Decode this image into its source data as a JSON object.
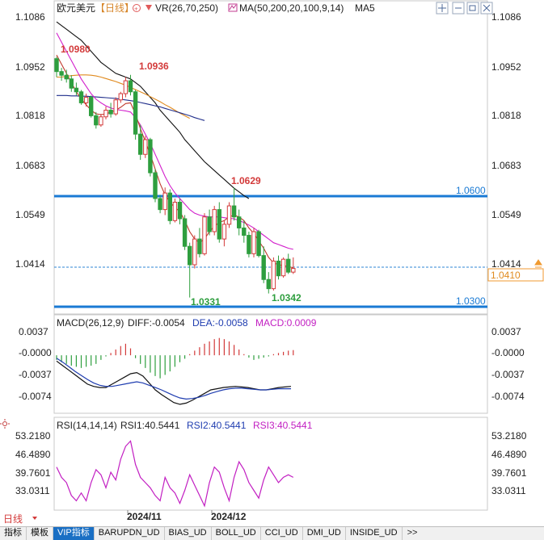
{
  "header": {
    "symbol": "欧元美元",
    "period": "【日线】",
    "vr_label": "VR(26,70,250)",
    "ma_label": "MA(50,200,20,100,9,14)",
    "ma5_label": "MA5"
  },
  "price_axis": {
    "ticks": [
      "1.1086",
      "1.0952",
      "1.0818",
      "1.0683",
      "1.0549",
      "1.0414"
    ],
    "current_price": "1.0410",
    "current_tick": "1.0414"
  },
  "annotations": {
    "high1": "1.0980",
    "high2": "1.0936",
    "high3": "1.0629",
    "low1": "1.0331",
    "low2": "1.0342",
    "level_upper": "1.0600",
    "level_lower": "1.0300"
  },
  "macd": {
    "title": "MACD(26,12,9)",
    "diff": "DIFF:-0.0054",
    "dea": "DEA:-0.0058",
    "macd": "MACD:0.0009",
    "ticks": [
      "0.0037",
      "-0.0000",
      "-0.0037",
      "-0.0074"
    ]
  },
  "rsi": {
    "title": "RSI(14,14,14)",
    "rsi1": "RSI1:40.5441",
    "rsi2": "RSI2:40.5441",
    "rsi3": "RSI3:40.5441",
    "ticks": [
      "53.2180",
      "46.4890",
      "39.7601",
      "33.0311"
    ]
  },
  "time_axis": {
    "labels": [
      "2024/11",
      "2024/12"
    ],
    "period_tab": "日线"
  },
  "tabs": [
    "指标",
    "模板",
    "VIP指标",
    "BARUPDN_UD",
    "BIAS_UD",
    "BOLL_UD",
    "CCI_UD",
    "DMI_UD",
    "INSIDE_UD"
  ],
  "more_tab": ">>",
  "colors": {
    "up": "#d33a3a",
    "down": "#2e9e3e",
    "level": "#1a7ad4",
    "ma_orange": "#e08a1e",
    "ma_navy": "#1f2d8a",
    "ma_black": "#111111",
    "ma_magenta": "#d21fcb",
    "ma_red": "#c0392b"
  },
  "chart_data": {
    "type": "candlestick",
    "ylim": [
      1.0295,
      1.11
    ],
    "candles": [
      [
        1.098,
        1.0985,
        1.093,
        1.0945
      ],
      [
        1.0945,
        1.0955,
        1.092,
        1.0935
      ],
      [
        1.0935,
        1.095,
        1.0915,
        1.0925
      ],
      [
        1.0925,
        1.0935,
        1.089,
        1.09
      ],
      [
        1.09,
        1.0915,
        1.088,
        1.089
      ],
      [
        1.089,
        1.0895,
        1.0855,
        1.086
      ],
      [
        1.086,
        1.0885,
        1.085,
        1.0875
      ],
      [
        1.0875,
        1.088,
        1.082,
        1.0825
      ],
      [
        1.0825,
        1.0835,
        1.079,
        1.08
      ],
      [
        1.08,
        1.083,
        1.0795,
        1.0822
      ],
      [
        1.0822,
        1.085,
        1.0815,
        1.084
      ],
      [
        1.084,
        1.086,
        1.082,
        1.083
      ],
      [
        1.083,
        1.0875,
        1.0825,
        1.0868
      ],
      [
        1.0868,
        1.089,
        1.086,
        1.0885
      ],
      [
        1.0885,
        1.093,
        1.0875,
        1.092
      ],
      [
        1.092,
        1.0936,
        1.088,
        1.089
      ],
      [
        1.089,
        1.0895,
        1.076,
        1.0775
      ],
      [
        1.0775,
        1.08,
        1.0705,
        1.072
      ],
      [
        1.072,
        1.077,
        1.071,
        1.076
      ],
      [
        1.076,
        1.0765,
        1.066,
        1.067
      ],
      [
        1.067,
        1.068,
        1.059,
        1.06
      ],
      [
        1.06,
        1.061,
        1.056,
        1.057
      ],
      [
        1.057,
        1.063,
        1.0555,
        1.0615
      ],
      [
        1.0615,
        1.0625,
        1.053,
        1.054
      ],
      [
        1.054,
        1.06,
        1.0535,
        1.059
      ],
      [
        1.059,
        1.06,
        1.053,
        1.0545
      ],
      [
        1.0545,
        1.0555,
        1.046,
        1.047
      ],
      [
        1.047,
        1.048,
        1.0331,
        1.042
      ],
      [
        1.042,
        1.05,
        1.041,
        1.049
      ],
      [
        1.049,
        1.052,
        1.044,
        1.045
      ],
      [
        1.045,
        1.056,
        1.0445,
        1.055
      ],
      [
        1.055,
        1.057,
        1.05,
        1.051
      ],
      [
        1.051,
        1.058,
        1.05,
        1.057
      ],
      [
        1.057,
        1.059,
        1.048,
        1.049
      ],
      [
        1.049,
        1.054,
        1.047,
        1.053
      ],
      [
        1.053,
        1.059,
        1.052,
        1.058
      ],
      [
        1.058,
        1.0629,
        1.054,
        1.055
      ],
      [
        1.055,
        1.057,
        1.05,
        1.052
      ],
      [
        1.052,
        1.054,
        1.048,
        1.05
      ],
      [
        1.05,
        1.051,
        1.044,
        1.045
      ],
      [
        1.045,
        1.052,
        1.044,
        1.051
      ],
      [
        1.051,
        1.0515,
        1.044,
        1.0445
      ],
      [
        1.0445,
        1.047,
        1.037,
        1.038
      ],
      [
        1.038,
        1.04,
        1.0342,
        1.0355
      ],
      [
        1.0355,
        1.044,
        1.035,
        1.043
      ],
      [
        1.043,
        1.0445,
        1.038,
        1.039
      ],
      [
        1.039,
        1.044,
        1.0385,
        1.0435
      ],
      [
        1.0435,
        1.045,
        1.0395,
        1.04
      ],
      [
        1.04,
        1.044,
        1.0395,
        1.041
      ]
    ],
    "ma_series": [
      {
        "color": "ma_black",
        "values": [
          1.108,
          1.107,
          1.106,
          1.105,
          1.104,
          1.103,
          1.1015,
          1.1,
          1.0985,
          1.097,
          1.096,
          1.095,
          1.094,
          1.0935,
          1.093,
          1.0925,
          1.0915,
          1.0905,
          1.089,
          1.0875,
          1.086,
          1.084,
          1.0825,
          1.081,
          1.0795,
          1.078,
          1.076,
          1.0745,
          1.073,
          1.0715,
          1.07,
          1.0688,
          1.0676,
          1.0664,
          1.0652,
          1.064,
          1.0628,
          1.0618,
          1.0608,
          1.06
        ]
      },
      {
        "color": "ma_orange",
        "values": [
          1.093,
          1.093,
          1.0932,
          1.0934,
          1.0935,
          1.0936,
          1.0936,
          1.0935,
          1.0933,
          1.093,
          1.0926,
          1.0922,
          1.0918,
          1.0913,
          1.0908,
          1.0902,
          1.0896,
          1.089,
          1.0884,
          1.0877,
          1.087,
          1.0863,
          1.0855,
          1.0848,
          1.084,
          1.0832,
          1.0825,
          1.0818
        ]
      },
      {
        "color": "ma_navy",
        "values": [
          1.088,
          1.088,
          1.088,
          1.0879,
          1.0879,
          1.0878,
          1.0878,
          1.0877,
          1.0876,
          1.0875,
          1.0874,
          1.0873,
          1.0872,
          1.087,
          1.0868,
          1.0866,
          1.0864,
          1.0861,
          1.0858,
          1.0855,
          1.0852,
          1.0849,
          1.0845,
          1.0841,
          1.0837,
          1.0833,
          1.0829,
          1.0825,
          1.082,
          1.0816,
          1.0812
        ]
      },
      {
        "color": "ma_magenta",
        "values": [
          1.105,
          1.1025,
          1.1,
          1.0975,
          1.095,
          1.0925,
          1.0905,
          1.0885,
          1.087,
          1.086,
          1.0852,
          1.0846,
          1.0842,
          1.084,
          1.0838,
          1.0835,
          1.082,
          1.08,
          1.0775,
          1.075,
          1.072,
          1.069,
          1.066,
          1.0635,
          1.0615,
          1.06,
          1.0585,
          1.057,
          1.056,
          1.0555,
          1.0552,
          1.055,
          1.055,
          1.055,
          1.0548,
          1.0546,
          1.0545,
          1.054,
          1.0535,
          1.0528,
          1.052,
          1.051,
          1.05,
          1.049,
          1.048,
          1.0475,
          1.047,
          1.0465,
          1.0462
        ]
      },
      {
        "color": "ma_red",
        "values": [
          1.099,
          1.0965,
          1.094,
          1.0915,
          1.089,
          1.087,
          1.0855,
          1.084,
          1.083,
          1.0828,
          1.083,
          1.0835,
          1.084,
          1.0848,
          1.0858,
          1.086,
          1.083,
          1.079,
          1.0755,
          1.072,
          1.068,
          1.064,
          1.061,
          1.059,
          1.0575,
          1.0565,
          1.054,
          1.051,
          1.049,
          1.048,
          1.049,
          1.051,
          1.0525,
          1.0535,
          1.054,
          1.055,
          1.0555,
          1.055,
          1.054,
          1.052,
          1.0505,
          1.0485,
          1.0465,
          1.044,
          1.0425,
          1.042,
          1.0418,
          1.0415,
          1.0412
        ]
      }
    ],
    "macd_ylim": [
      -0.0095,
      0.0045
    ],
    "macd_hist": [
      -0.0008,
      -0.0012,
      -0.0015,
      -0.0018,
      -0.002,
      -0.0022,
      -0.002,
      -0.0018,
      -0.0015,
      -0.0008,
      -0.0002,
      0.0004,
      0.001,
      0.0016,
      0.002,
      0.0012,
      -0.0005,
      -0.0015,
      -0.0022,
      -0.003,
      -0.0036,
      -0.004,
      -0.0034,
      -0.0028,
      -0.002,
      -0.0012,
      -0.0006,
      0.0002,
      0.0008,
      0.0014,
      0.002,
      0.0024,
      0.0028,
      0.003,
      0.0028,
      0.0024,
      0.0018,
      0.001,
      0.0002,
      -0.0004,
      -0.0008,
      -0.0006,
      -0.0004,
      -0.0002,
      0.0002,
      0.0004,
      0.0006,
      0.0008,
      0.0009
    ],
    "macd_diff": [
      -0.001,
      -0.0018,
      -0.0026,
      -0.0034,
      -0.0042,
      -0.005,
      -0.0054,
      -0.0056,
      -0.0056,
      -0.005,
      -0.0044,
      -0.0038,
      -0.0032,
      -0.003,
      -0.0036,
      -0.0048,
      -0.006,
      -0.0068,
      -0.0075,
      -0.0082,
      -0.0085,
      -0.0083,
      -0.0078,
      -0.0072,
      -0.0066,
      -0.006,
      -0.0058,
      -0.0056,
      -0.0055,
      -0.0054,
      -0.0055,
      -0.0056,
      -0.0058,
      -0.006,
      -0.006,
      -0.0058,
      -0.0056,
      -0.0055,
      -0.0054
    ],
    "macd_dea": [
      -0.0005,
      -0.0012,
      -0.002,
      -0.0028,
      -0.0035,
      -0.0042,
      -0.0048,
      -0.0052,
      -0.0054,
      -0.0054,
      -0.0052,
      -0.005,
      -0.0048,
      -0.0046,
      -0.0048,
      -0.0052,
      -0.0056,
      -0.006,
      -0.0065,
      -0.007,
      -0.0074,
      -0.0076,
      -0.0075,
      -0.0073,
      -0.007,
      -0.0066,
      -0.0063,
      -0.006,
      -0.0058,
      -0.0057,
      -0.0057,
      -0.0058,
      -0.0059,
      -0.006,
      -0.006,
      -0.0059,
      -0.0058,
      -0.0058,
      -0.0058
    ],
    "rsi_ylim": [
      28,
      56
    ],
    "rsi_values": [
      44,
      40,
      38,
      33,
      31,
      34,
      31,
      38,
      43,
      41,
      36,
      42,
      39,
      47,
      52,
      54,
      45,
      40,
      38,
      36,
      33,
      31,
      40,
      36,
      34,
      30,
      35,
      41,
      37,
      33,
      29,
      38,
      44,
      42,
      36,
      31,
      40,
      46,
      43,
      38,
      35,
      32,
      39,
      44,
      41,
      38,
      40,
      41,
      40
    ]
  }
}
